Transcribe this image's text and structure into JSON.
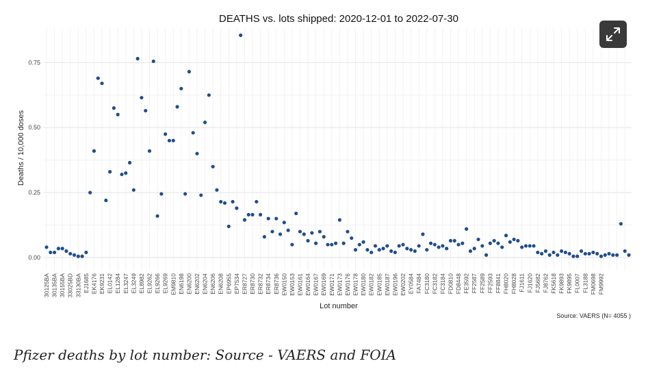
{
  "caption": "Pfizer deaths by lot number: Source - VAERS and FOIA",
  "expand_button": {
    "icon": "expand-icon"
  },
  "chart_data": {
    "type": "scatter",
    "title": "DEATHS vs. lots shipped: 2020-12-01 to 2022-07-30",
    "xlabel": "Lot number",
    "ylabel": "Deaths / 10,000 doses",
    "source": "Source: VAERS (N= 4055 )",
    "ylim": [
      -0.05,
      0.88
    ],
    "yticks": [
      0.0,
      0.25,
      0.5,
      0.75
    ],
    "ytick_labels": [
      "0.00",
      "0.25",
      "0.50",
      "0.75"
    ],
    "grid": true,
    "point_color": "#1f4e8c",
    "x_tick_labels": [
      "30125BA",
      "30135BA",
      "30155BA",
      "33025BD",
      "33130BA",
      "EJ1685",
      "EK4176",
      "EK9231",
      "EL0142",
      "EL1284",
      "EL3247",
      "EL3249",
      "EL8982",
      "EL9262",
      "EL9266",
      "EL9269",
      "EM9810",
      "EN6198",
      "EN6200",
      "EN6202",
      "EN6204",
      "EN6206",
      "EN6208",
      "EP6955",
      "EP7534",
      "ER8727",
      "ER8730",
      "ER8732",
      "ER8734",
      "ER8736",
      "EW0150",
      "EW0153",
      "EW0161",
      "EW0164",
      "EW0167",
      "EW0169",
      "EW0171",
      "EW0173",
      "EW0176",
      "EW0178",
      "EW0180",
      "EW0182",
      "EW0185",
      "EW0187",
      "EW0196",
      "EW0202",
      "EY0584",
      "FA7484",
      "FC3180",
      "FC3182",
      "FC3184",
      "FD0810",
      "FD8448",
      "FE3592",
      "FF2587",
      "FF2589",
      "FF2593",
      "FF8841",
      "FH8020",
      "FH8028",
      "FJ1611",
      "FJ1620",
      "FJ5682",
      "FJ8762",
      "FK5618",
      "FK9893",
      "FK9895",
      "FL0007",
      "FL3188",
      "FM0698",
      "FM9992"
    ],
    "y": [
      0.04,
      0.02,
      0.02,
      0.035,
      0.035,
      0.025,
      0.015,
      0.01,
      0.005,
      0.005,
      0.02,
      0.25,
      0.41,
      0.69,
      0.67,
      0.22,
      0.33,
      0.575,
      0.55,
      0.32,
      0.325,
      0.365,
      0.26,
      0.765,
      0.615,
      0.565,
      0.41,
      0.755,
      0.16,
      0.245,
      0.475,
      0.45,
      0.45,
      0.58,
      0.65,
      0.245,
      0.715,
      0.48,
      0.4,
      0.24,
      0.52,
      0.625,
      0.35,
      0.26,
      0.215,
      0.21,
      0.12,
      0.215,
      0.19,
      0.855,
      0.145,
      0.165,
      0.165,
      0.215,
      0.165,
      0.08,
      0.15,
      0.1,
      0.15,
      0.09,
      0.135,
      0.105,
      0.05,
      0.17,
      0.1,
      0.09,
      0.065,
      0.095,
      0.055,
      0.1,
      0.08,
      0.05,
      0.05,
      0.055,
      0.145,
      0.055,
      0.1,
      0.075,
      0.03,
      0.05,
      0.06,
      0.03,
      0.02,
      0.045,
      0.03,
      0.035,
      0.045,
      0.025,
      0.02,
      0.045,
      0.05,
      0.035,
      0.03,
      0.025,
      0.045,
      0.09,
      0.03,
      0.055,
      0.05,
      0.04,
      0.045,
      0.035,
      0.065,
      0.065,
      0.05,
      0.055,
      0.11,
      0.025,
      0.035,
      0.07,
      0.045,
      0.01,
      0.055,
      0.065,
      0.055,
      0.04,
      0.085,
      0.06,
      0.07,
      0.065,
      0.04,
      0.045,
      0.045,
      0.045,
      0.02,
      0.015,
      0.025,
      0.01,
      0.02,
      0.01,
      0.025,
      0.02,
      0.015,
      0.005,
      0.005,
      0.025,
      0.015,
      0.015,
      0.02,
      0.015,
      0.005,
      0.01,
      0.015,
      0.01,
      0.01,
      0.13,
      0.025,
      0.01
    ]
  }
}
